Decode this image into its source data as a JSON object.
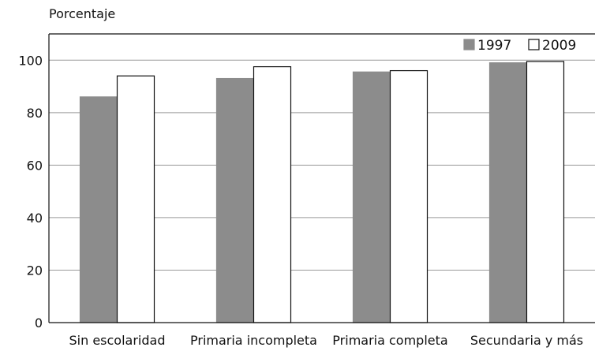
{
  "chart_data": {
    "type": "bar",
    "title": "",
    "ylabel": "Porcentaje",
    "xlabel": "",
    "categories": [
      "Sin escolaridad",
      "Primaria incompleta",
      "Primaria completa",
      "Secundaria y más"
    ],
    "series": [
      {
        "name": "1997",
        "values": [
          86,
          93,
          95.5,
          99
        ],
        "color": "#8c8c8c"
      },
      {
        "name": "2009",
        "values": [
          94,
          97.5,
          96,
          99.5
        ],
        "color": "#ffffff"
      }
    ],
    "ylim": [
      0,
      110
    ],
    "yticks": [
      0,
      20,
      40,
      60,
      80,
      100
    ],
    "grid": true,
    "legend": "top-right"
  }
}
